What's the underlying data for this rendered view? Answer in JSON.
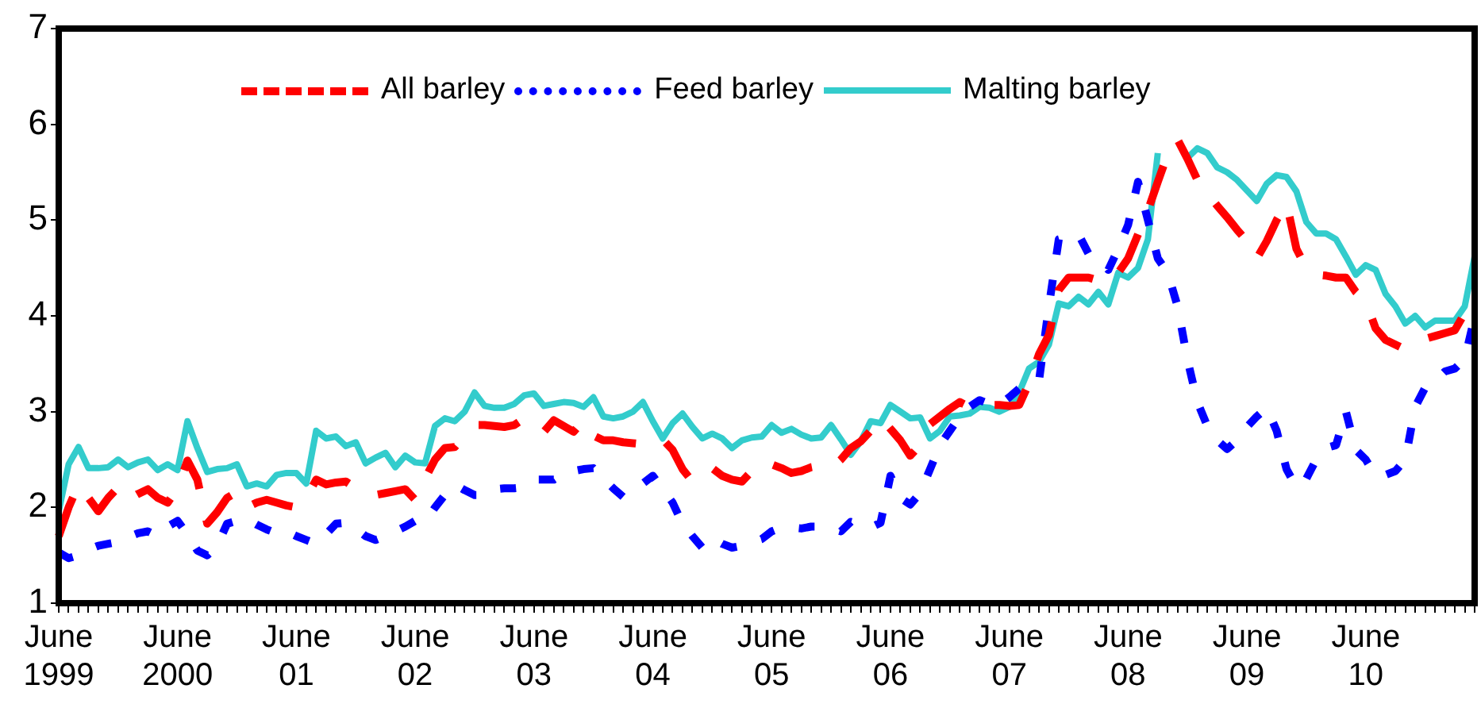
{
  "chart_data": {
    "type": "line",
    "legend": "top",
    "marker": "none",
    "grid": false,
    "ylim": [
      1,
      7
    ],
    "yticks": [
      1,
      2,
      3,
      4,
      5,
      6,
      7
    ],
    "categories": [
      "June 1999",
      null,
      null,
      null,
      null,
      null,
      null,
      null,
      null,
      null,
      null,
      null,
      "June 2000",
      null,
      null,
      null,
      null,
      null,
      null,
      null,
      null,
      null,
      null,
      null,
      "June 01",
      null,
      null,
      null,
      null,
      null,
      null,
      null,
      null,
      null,
      null,
      null,
      "June 02",
      null,
      null,
      null,
      null,
      null,
      null,
      null,
      null,
      null,
      null,
      null,
      "June 03",
      null,
      null,
      null,
      null,
      null,
      null,
      null,
      null,
      null,
      null,
      null,
      "June 04",
      null,
      null,
      null,
      null,
      null,
      null,
      null,
      null,
      null,
      null,
      null,
      "June 05",
      null,
      null,
      null,
      null,
      null,
      null,
      null,
      null,
      null,
      null,
      null,
      "June 06",
      null,
      null,
      null,
      null,
      null,
      null,
      null,
      null,
      null,
      null,
      null,
      "June 07",
      null,
      null,
      null,
      null,
      null,
      null,
      null,
      null,
      null,
      null,
      null,
      "June 08",
      null,
      null,
      null,
      null,
      null,
      null,
      null,
      null,
      null,
      null,
      null,
      "June 09",
      null,
      null,
      null,
      null,
      null,
      null,
      null,
      null,
      null,
      null,
      null,
      "June 10",
      null,
      null,
      null,
      null,
      null,
      null,
      null,
      null,
      null,
      null,
      null
    ],
    "series": [
      {
        "name": "All barley",
        "color": "#ff0000",
        "line_style": "dashed",
        "values": [
          1.7,
          2.0,
          2.24,
          2.1,
          1.96,
          2.1,
          2.21,
          2.08,
          2.14,
          2.19,
          2.1,
          2.05,
          2.2,
          2.49,
          2.29,
          1.83,
          1.95,
          2.1,
          2.16,
          2.0,
          2.05,
          2.08,
          2.05,
          2.02,
          2.0,
          2.1,
          2.29,
          2.24,
          2.26,
          2.27,
          2.2,
          2.15,
          2.13,
          2.15,
          2.17,
          2.19,
          2.08,
          2.3,
          2.5,
          2.62,
          2.63,
          2.75,
          2.86,
          2.86,
          2.85,
          2.84,
          2.86,
          2.93,
          2.88,
          2.79,
          2.91,
          2.85,
          2.79,
          2.91,
          2.75,
          2.7,
          2.7,
          2.68,
          2.67,
          2.66,
          2.68,
          2.71,
          2.6,
          2.4,
          2.27,
          2.35,
          2.41,
          2.33,
          2.29,
          2.27,
          2.38,
          2.49,
          2.45,
          2.41,
          2.36,
          2.38,
          2.42,
          2.44,
          2.41,
          2.5,
          2.62,
          2.69,
          2.8,
          2.94,
          2.82,
          2.7,
          2.54,
          2.65,
          2.87,
          2.95,
          3.03,
          3.1,
          3.05,
          3.04,
          3.07,
          3.07,
          3.06,
          3.07,
          3.3,
          3.6,
          3.8,
          4.27,
          4.4,
          4.4,
          4.4,
          4.37,
          4.35,
          4.45,
          4.6,
          4.85,
          5.1,
          5.4,
          5.69,
          5.84,
          5.64,
          5.42,
          5.28,
          5.15,
          5.03,
          4.9,
          4.78,
          4.6,
          4.78,
          5.0,
          5.18,
          4.7,
          4.5,
          4.43,
          4.42,
          4.4,
          4.4,
          4.25,
          4.15,
          3.87,
          3.75,
          3.7,
          3.65,
          3.7,
          3.76,
          3.79,
          3.82,
          3.85,
          4.03,
          4.1
        ]
      },
      {
        "name": "Feed barley",
        "color": "#0000ff",
        "line_style": "dotted",
        "values": [
          1.53,
          1.47,
          1.5,
          1.56,
          1.6,
          1.62,
          1.64,
          1.69,
          1.73,
          1.75,
          1.7,
          1.8,
          1.86,
          1.72,
          1.55,
          1.5,
          1.6,
          1.83,
          1.86,
          1.88,
          1.82,
          1.77,
          1.73,
          1.75,
          1.7,
          1.66,
          1.62,
          1.72,
          1.83,
          1.84,
          1.78,
          1.7,
          1.66,
          1.7,
          1.75,
          1.8,
          1.86,
          1.85,
          2.0,
          2.13,
          2.24,
          2.18,
          2.13,
          2.13,
          2.19,
          2.2,
          2.2,
          2.21,
          2.29,
          2.29,
          2.29,
          2.36,
          2.38,
          2.4,
          2.41,
          2.3,
          2.2,
          2.11,
          2.16,
          2.25,
          2.33,
          2.19,
          2.05,
          1.83,
          1.7,
          1.58,
          1.68,
          1.62,
          1.58,
          1.6,
          1.64,
          1.67,
          1.75,
          1.79,
          1.79,
          1.78,
          1.8,
          1.8,
          1.78,
          1.75,
          1.85,
          1.82,
          1.79,
          1.84,
          2.33,
          2.1,
          2.03,
          2.15,
          2.4,
          2.65,
          2.8,
          2.95,
          3.05,
          3.12,
          3.08,
          3.07,
          3.15,
          3.24,
          3.3,
          3.32,
          4.1,
          4.8,
          4.83,
          4.85,
          4.65,
          4.6,
          4.48,
          4.7,
          4.95,
          5.4,
          5.0,
          4.6,
          4.45,
          4.1,
          3.54,
          3.1,
          2.85,
          2.7,
          2.61,
          2.7,
          2.84,
          2.95,
          3.04,
          2.8,
          2.4,
          2.21,
          2.3,
          2.5,
          2.62,
          2.65,
          3.0,
          2.6,
          2.5,
          2.33,
          2.34,
          2.38,
          2.5,
          3.05,
          3.25,
          3.32,
          3.42,
          3.45,
          3.55,
          3.99
        ]
      },
      {
        "name": "Malting barley",
        "color": "#33cccc",
        "line_style": "solid",
        "values": [
          1.96,
          2.45,
          2.63,
          2.41,
          2.41,
          2.42,
          2.5,
          2.42,
          2.47,
          2.5,
          2.39,
          2.45,
          2.39,
          2.9,
          2.62,
          2.37,
          2.4,
          2.41,
          2.45,
          2.22,
          2.25,
          2.22,
          2.34,
          2.36,
          2.36,
          2.25,
          2.8,
          2.72,
          2.74,
          2.64,
          2.68,
          2.46,
          2.52,
          2.57,
          2.42,
          2.54,
          2.47,
          2.46,
          2.85,
          2.93,
          2.9,
          3.0,
          3.2,
          3.06,
          3.04,
          3.04,
          3.08,
          3.17,
          3.19,
          3.06,
          3.08,
          3.1,
          3.09,
          3.05,
          3.15,
          2.95,
          2.93,
          2.95,
          3.0,
          3.1,
          2.9,
          2.72,
          2.88,
          2.98,
          2.84,
          2.72,
          2.77,
          2.72,
          2.62,
          2.7,
          2.73,
          2.74,
          2.86,
          2.78,
          2.82,
          2.76,
          2.72,
          2.73,
          2.86,
          2.71,
          2.55,
          2.69,
          2.9,
          2.88,
          3.07,
          3.0,
          2.93,
          2.94,
          2.72,
          2.8,
          2.95,
          2.96,
          2.98,
          3.05,
          3.04,
          3.0,
          3.05,
          3.2,
          3.45,
          3.52,
          3.7,
          4.13,
          4.1,
          4.2,
          4.12,
          4.25,
          4.12,
          4.45,
          4.4,
          4.5,
          4.8,
          5.7,
          null,
          null,
          5.65,
          5.75,
          5.7,
          5.55,
          5.5,
          5.42,
          5.31,
          5.2,
          5.38,
          5.47,
          5.45,
          5.3,
          4.98,
          4.86,
          4.86,
          4.8,
          4.62,
          4.43,
          4.53,
          4.48,
          4.23,
          4.1,
          3.92,
          4.0,
          3.88,
          3.95,
          3.95,
          3.95,
          4.1,
          4.62
        ]
      }
    ]
  }
}
